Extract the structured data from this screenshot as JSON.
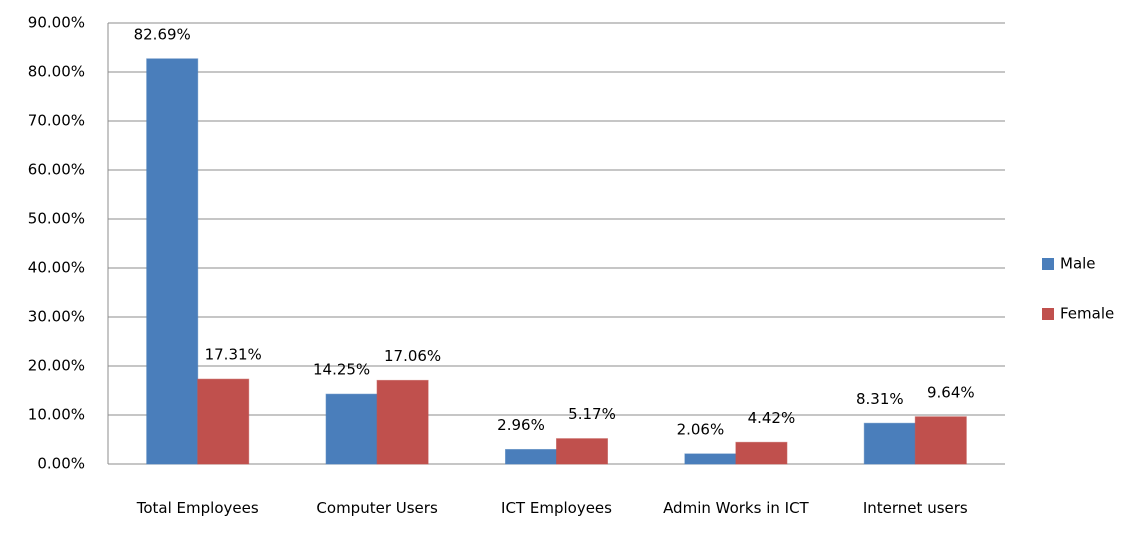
{
  "chart_data": {
    "type": "bar",
    "categories": [
      "Total Employees",
      "Computer Users",
      "ICT Employees",
      "Admin Works in ICT",
      "Internet users"
    ],
    "series": [
      {
        "name": "Male",
        "color": "#4a7ebb",
        "values": [
          82.69,
          14.25,
          2.96,
          2.06,
          8.31
        ],
        "value_labels": [
          "82.69%",
          "14.25%",
          "2.96%",
          "2.06%",
          "8.31%"
        ]
      },
      {
        "name": "Female",
        "color": "#c0504d",
        "values": [
          17.31,
          17.06,
          5.17,
          4.42,
          9.64
        ],
        "value_labels": [
          "17.31%",
          "17.06%",
          "5.17%",
          "4.42%",
          "9.64%"
        ]
      }
    ],
    "ylim": [
      0,
      90
    ],
    "yticks": [
      {
        "value": 0,
        "label": "0.00%"
      },
      {
        "value": 10,
        "label": "10.00%"
      },
      {
        "value": 20,
        "label": "20.00%"
      },
      {
        "value": 30,
        "label": "30.00%"
      },
      {
        "value": 40,
        "label": "40.00%"
      },
      {
        "value": 50,
        "label": "50.00%"
      },
      {
        "value": 60,
        "label": "60.00%"
      },
      {
        "value": 70,
        "label": "70.00%"
      },
      {
        "value": 80,
        "label": "80.00%"
      },
      {
        "value": 90,
        "label": "90.00%"
      }
    ],
    "grid": true,
    "legend": "right"
  }
}
